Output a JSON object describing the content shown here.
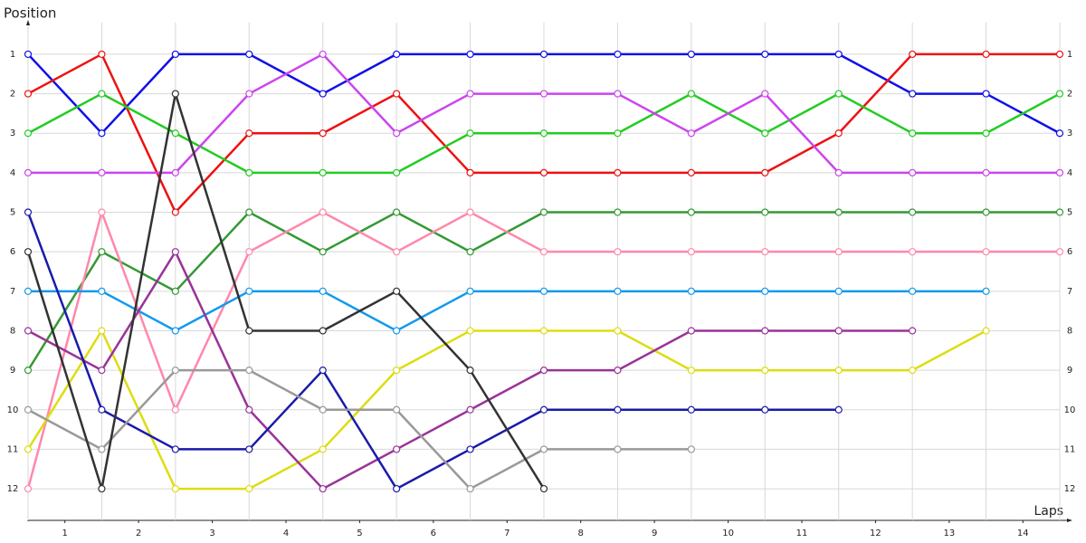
{
  "chart_data": {
    "type": "line",
    "y_axis_title": "Position",
    "x_axis_title": "Laps",
    "x": [
      0,
      1,
      2,
      3,
      4,
      5,
      6,
      7,
      8,
      9,
      10,
      11,
      12,
      13,
      14
    ],
    "xlim": [
      0,
      14
    ],
    "xticks": [
      {
        "value": 0.5,
        "label": "1"
      },
      {
        "value": 1.5,
        "label": "2"
      },
      {
        "value": 2.5,
        "label": "3"
      },
      {
        "value": 3.5,
        "label": "4"
      },
      {
        "value": 4.5,
        "label": "5"
      },
      {
        "value": 5.5,
        "label": "6"
      },
      {
        "value": 6.5,
        "label": "7"
      },
      {
        "value": 7.5,
        "label": "8"
      },
      {
        "value": 8.5,
        "label": "9"
      },
      {
        "value": 9.5,
        "label": "10"
      },
      {
        "value": 10.5,
        "label": "11"
      },
      {
        "value": 11.5,
        "label": "12"
      },
      {
        "value": 12.5,
        "label": "13"
      },
      {
        "value": 13.5,
        "label": "14"
      }
    ],
    "ylim": [
      12.8,
      0.2
    ],
    "yticks": [
      1,
      2,
      3,
      4,
      5,
      6,
      7,
      8,
      9,
      10,
      11,
      12
    ],
    "grid": true,
    "series": [
      {
        "color": "#1010e8",
        "values": [
          1,
          3,
          1,
          1,
          2,
          1,
          1,
          1,
          1,
          1,
          1,
          1,
          2,
          2,
          3
        ]
      },
      {
        "color": "#ee1111",
        "values": [
          2,
          1,
          5,
          3,
          3,
          2,
          4,
          4,
          4,
          4,
          4,
          3,
          1,
          1,
          1
        ]
      },
      {
        "color": "#22cc22",
        "values": [
          3,
          2,
          3,
          4,
          4,
          4,
          3,
          3,
          3,
          2,
          3,
          2,
          3,
          3,
          2
        ]
      },
      {
        "color": "#cc44ee",
        "values": [
          4,
          4,
          4,
          2,
          1,
          3,
          2,
          2,
          2,
          3,
          2,
          4,
          4,
          4,
          4
        ]
      },
      {
        "color": "#339933",
        "values": [
          9,
          6,
          7,
          5,
          6,
          5,
          6,
          5,
          5,
          5,
          5,
          5,
          5,
          5,
          5
        ]
      },
      {
        "color": "#ff88aa",
        "values": [
          12,
          5,
          10,
          6,
          5,
          6,
          5,
          6,
          6,
          6,
          6,
          6,
          6,
          6,
          6
        ]
      },
      {
        "color": "#1199ee",
        "values": [
          7,
          7,
          8,
          7,
          7,
          8,
          7,
          7,
          7,
          7,
          7,
          7,
          7,
          7,
          null
        ]
      },
      {
        "color": "#dddd11",
        "values": [
          11,
          8,
          12,
          12,
          11,
          9,
          8,
          8,
          8,
          9,
          9,
          9,
          9,
          8,
          null
        ]
      },
      {
        "color": "#993399",
        "values": [
          8,
          9,
          6,
          10,
          12,
          11,
          10,
          9,
          9,
          8,
          8,
          8,
          8,
          null,
          null
        ]
      },
      {
        "color": "#1a1aaa",
        "values": [
          5,
          10,
          11,
          11,
          9,
          12,
          11,
          10,
          10,
          10,
          10,
          10,
          null,
          null,
          null
        ]
      },
      {
        "color": "#999999",
        "values": [
          10,
          11,
          9,
          9,
          10,
          10,
          12,
          11,
          11,
          11,
          null,
          null,
          null,
          null,
          null
        ]
      },
      {
        "color": "#333333",
        "values": [
          6,
          12,
          2,
          8,
          8,
          7,
          9,
          12,
          null,
          null,
          null,
          null,
          null,
          null,
          null
        ]
      }
    ]
  }
}
